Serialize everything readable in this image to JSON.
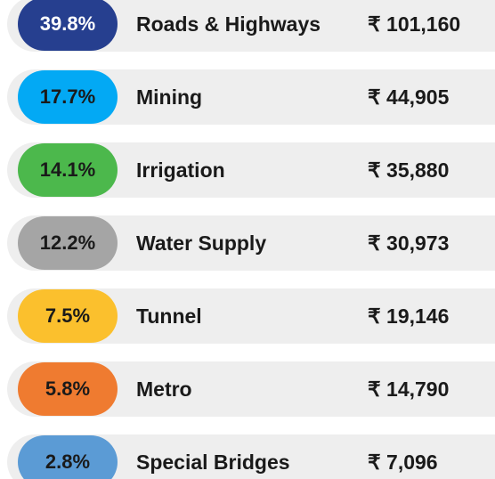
{
  "items": [
    {
      "percent": "39.8%",
      "name": "Roads & Highways",
      "amount": "₹ 101,160",
      "color": "#263f8f",
      "text_color": "#ffffff"
    },
    {
      "percent": "17.7%",
      "name": "Mining",
      "amount": "₹ 44,905",
      "color": "#03a9f4",
      "text_color": "#1a1a1a"
    },
    {
      "percent": "14.1%",
      "name": "Irrigation",
      "amount": "₹ 35,880",
      "color": "#4cb84c",
      "text_color": "#1a1a1a"
    },
    {
      "percent": "12.2%",
      "name": "Water Supply",
      "amount": "₹ 30,973",
      "color": "#a5a5a5",
      "text_color": "#1a1a1a"
    },
    {
      "percent": "7.5%",
      "name": "Tunnel",
      "amount": "₹ 19,146",
      "color": "#fbc02d",
      "text_color": "#1a1a1a"
    },
    {
      "percent": "5.8%",
      "name": "Metro",
      "amount": "₹ 14,790",
      "color": "#ef7b30",
      "text_color": "#1a1a1a"
    },
    {
      "percent": "2.8%",
      "name": "Special Bridges",
      "amount": "₹ 7,096",
      "color": "#5b9bd5",
      "text_color": "#1a1a1a"
    }
  ]
}
